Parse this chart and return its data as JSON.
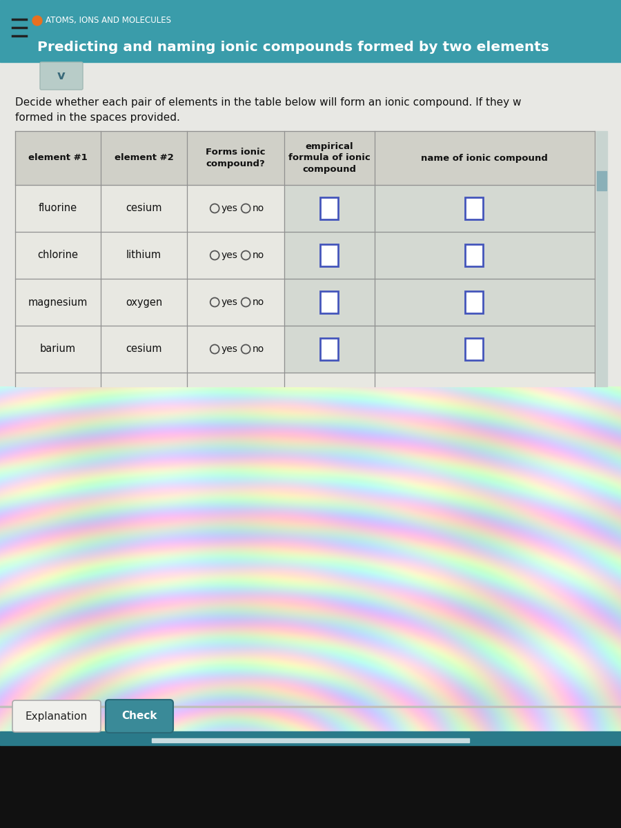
{
  "title_topic": "ATOMS, IONS AND MOLECULES",
  "title_main": "Predicting and naming ionic compounds formed by two elements",
  "header_bg": "#3a9caa",
  "header_text_color": "#ffffff",
  "page_bg": "#e8e8e4",
  "col_headers": [
    "element #1",
    "element #2",
    "Forms ionic\ncompound?",
    "empirical\nformula of ionic\ncompound",
    "name of ionic compound"
  ],
  "elem1": [
    "fluorine",
    "chlorine",
    "magnesium",
    "barium"
  ],
  "elem2": [
    "cesium",
    "lithium",
    "oxygen",
    "cesium"
  ],
  "button_explanation": "Explanation",
  "button_check": "Check",
  "button_check_bg": "#3a8a98",
  "button_exp_bg": "#f0f0ec",
  "orange_dot_color": "#e87020",
  "hamburger_color": "#222222",
  "chevron_bg": "#b8ccc8",
  "chevron_color": "#3a6a7a",
  "input_box_color": "#4455bb",
  "table_line_color": "#909090",
  "table_bg": "#e8e8e2",
  "table_header_bg": "#d0d0c8",
  "shaded_col_bg": "#c8d0c8",
  "scrollbar_track": "#c8d4d0",
  "scrollbar_thumb": "#8ab0b8"
}
